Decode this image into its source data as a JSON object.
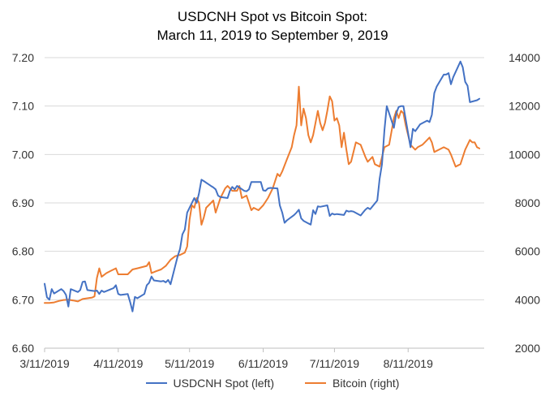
{
  "chart_data": {
    "type": "line",
    "title": [
      "USDCNH Spot vs Bitcoin Spot:",
      "March  11, 2019 to September 9, 2019"
    ],
    "x_axis": {
      "type": "date",
      "range": [
        "2019-03-11",
        "2019-09-12"
      ],
      "tick_labels": [
        "3/11/2019",
        "4/11/2019",
        "5/11/2019",
        "6/11/2019",
        "7/11/2019",
        "8/11/2019"
      ],
      "tick_dates": [
        "2019-03-11",
        "2019-04-11",
        "2019-05-11",
        "2019-06-11",
        "2019-07-11",
        "2019-08-11"
      ]
    },
    "y_left": {
      "range": [
        6.6,
        7.2
      ],
      "ticks": [
        6.6,
        6.7,
        6.8,
        6.9,
        7.0,
        7.1,
        7.2
      ],
      "tick_labels": [
        "6.60",
        "6.70",
        "6.80",
        "6.90",
        "7.00",
        "7.10",
        "7.20"
      ]
    },
    "y_right": {
      "range": [
        2000,
        14000
      ],
      "ticks": [
        2000,
        4000,
        6000,
        8000,
        10000,
        12000,
        14000
      ],
      "tick_labels": [
        "2000",
        "4000",
        "6000",
        "8000",
        "10000",
        "12000",
        "14000"
      ]
    },
    "grid": "horizontal",
    "legend_position": "bottom",
    "series": [
      {
        "name": "USDCNH Spot (left)",
        "axis": "left",
        "color": "#4472C4",
        "points": [
          [
            "2019-03-11",
            6.733
          ],
          [
            "2019-03-12",
            6.705
          ],
          [
            "2019-03-13",
            6.7
          ],
          [
            "2019-03-14",
            6.722
          ],
          [
            "2019-03-15",
            6.713
          ],
          [
            "2019-03-18",
            6.722
          ],
          [
            "2019-03-19",
            6.718
          ],
          [
            "2019-03-20",
            6.71
          ],
          [
            "2019-03-21",
            6.686
          ],
          [
            "2019-03-22",
            6.722
          ],
          [
            "2019-03-25",
            6.716
          ],
          [
            "2019-03-26",
            6.72
          ],
          [
            "2019-03-27",
            6.737
          ],
          [
            "2019-03-28",
            6.738
          ],
          [
            "2019-03-29",
            6.72
          ],
          [
            "2019-04-01",
            6.718
          ],
          [
            "2019-04-02",
            6.719
          ],
          [
            "2019-04-03",
            6.712
          ],
          [
            "2019-04-04",
            6.719
          ],
          [
            "2019-04-05",
            6.716
          ],
          [
            "2019-04-08",
            6.722
          ],
          [
            "2019-04-09",
            6.724
          ],
          [
            "2019-04-10",
            6.73
          ],
          [
            "2019-04-11",
            6.712
          ],
          [
            "2019-04-12",
            6.71
          ],
          [
            "2019-04-15",
            6.712
          ],
          [
            "2019-04-16",
            6.695
          ],
          [
            "2019-04-17",
            6.676
          ],
          [
            "2019-04-18",
            6.706
          ],
          [
            "2019-04-19",
            6.703
          ],
          [
            "2019-04-22",
            6.712
          ],
          [
            "2019-04-23",
            6.73
          ],
          [
            "2019-04-24",
            6.735
          ],
          [
            "2019-04-25",
            6.748
          ],
          [
            "2019-04-26",
            6.74
          ],
          [
            "2019-04-29",
            6.738
          ],
          [
            "2019-04-30",
            6.739
          ],
          [
            "2019-05-01",
            6.736
          ],
          [
            "2019-05-02",
            6.741
          ],
          [
            "2019-05-03",
            6.732
          ],
          [
            "2019-05-06",
            6.79
          ],
          [
            "2019-05-07",
            6.805
          ],
          [
            "2019-05-08",
            6.835
          ],
          [
            "2019-05-09",
            6.845
          ],
          [
            "2019-05-10",
            6.88
          ],
          [
            "2019-05-13",
            6.91
          ],
          [
            "2019-05-14",
            6.9
          ],
          [
            "2019-05-15",
            6.92
          ],
          [
            "2019-05-16",
            6.948
          ],
          [
            "2019-05-17",
            6.945
          ],
          [
            "2019-05-20",
            6.935
          ],
          [
            "2019-05-21",
            6.932
          ],
          [
            "2019-05-22",
            6.928
          ],
          [
            "2019-05-23",
            6.915
          ],
          [
            "2019-05-24",
            6.912
          ],
          [
            "2019-05-27",
            6.91
          ],
          [
            "2019-05-28",
            6.925
          ],
          [
            "2019-05-29",
            6.933
          ],
          [
            "2019-05-30",
            6.928
          ],
          [
            "2019-05-31",
            6.935
          ],
          [
            "2019-06-03",
            6.925
          ],
          [
            "2019-06-04",
            6.924
          ],
          [
            "2019-06-05",
            6.928
          ],
          [
            "2019-06-06",
            6.943
          ],
          [
            "2019-06-07",
            6.943
          ],
          [
            "2019-06-10",
            6.943
          ],
          [
            "2019-06-11",
            6.926
          ],
          [
            "2019-06-12",
            6.925
          ],
          [
            "2019-06-13",
            6.93
          ],
          [
            "2019-06-14",
            6.931
          ],
          [
            "2019-06-17",
            6.93
          ],
          [
            "2019-06-18",
            6.895
          ],
          [
            "2019-06-19",
            6.88
          ],
          [
            "2019-06-20",
            6.859
          ],
          [
            "2019-06-21",
            6.864
          ],
          [
            "2019-06-24",
            6.875
          ],
          [
            "2019-06-25",
            6.88
          ],
          [
            "2019-06-26",
            6.886
          ],
          [
            "2019-06-27",
            6.868
          ],
          [
            "2019-06-28",
            6.863
          ],
          [
            "2019-07-01",
            6.855
          ],
          [
            "2019-07-02",
            6.885
          ],
          [
            "2019-07-03",
            6.877
          ],
          [
            "2019-07-04",
            6.893
          ],
          [
            "2019-07-05",
            6.892
          ],
          [
            "2019-07-08",
            6.895
          ],
          [
            "2019-07-09",
            6.873
          ],
          [
            "2019-07-10",
            6.878
          ],
          [
            "2019-07-11",
            6.876
          ],
          [
            "2019-07-12",
            6.877
          ],
          [
            "2019-07-15",
            6.875
          ],
          [
            "2019-07-16",
            6.884
          ],
          [
            "2019-07-17",
            6.882
          ],
          [
            "2019-07-18",
            6.883
          ],
          [
            "2019-07-19",
            6.882
          ],
          [
            "2019-07-22",
            6.874
          ],
          [
            "2019-07-23",
            6.88
          ],
          [
            "2019-07-24",
            6.886
          ],
          [
            "2019-07-25",
            6.89
          ],
          [
            "2019-07-26",
            6.887
          ],
          [
            "2019-07-29",
            6.905
          ],
          [
            "2019-07-30",
            6.95
          ],
          [
            "2019-07-31",
            6.98
          ],
          [
            "2019-08-01",
            7.05
          ],
          [
            "2019-08-02",
            7.1
          ],
          [
            "2019-08-05",
            7.055
          ],
          [
            "2019-08-06",
            7.085
          ],
          [
            "2019-08-07",
            7.098
          ],
          [
            "2019-08-08",
            7.1
          ],
          [
            "2019-08-09",
            7.1
          ],
          [
            "2019-08-12",
            7.015
          ],
          [
            "2019-08-13",
            7.053
          ],
          [
            "2019-08-14",
            7.048
          ],
          [
            "2019-08-15",
            7.055
          ],
          [
            "2019-08-16",
            7.062
          ],
          [
            "2019-08-19",
            7.07
          ],
          [
            "2019-08-20",
            7.067
          ],
          [
            "2019-08-21",
            7.082
          ],
          [
            "2019-08-22",
            7.127
          ],
          [
            "2019-08-23",
            7.14
          ],
          [
            "2019-08-26",
            7.165
          ],
          [
            "2019-08-27",
            7.165
          ],
          [
            "2019-08-28",
            7.168
          ],
          [
            "2019-08-29",
            7.145
          ],
          [
            "2019-08-30",
            7.16
          ],
          [
            "2019-09-02",
            7.192
          ],
          [
            "2019-09-03",
            7.18
          ],
          [
            "2019-09-04",
            7.15
          ],
          [
            "2019-09-05",
            7.142
          ],
          [
            "2019-09-06",
            7.108
          ],
          [
            "2019-09-09",
            7.112
          ],
          [
            "2019-09-10",
            7.115
          ]
        ]
      },
      {
        "name": "Bitcoin (right)",
        "axis": "right",
        "color": "#ED7D31",
        "points": [
          [
            "2019-03-11",
            3870
          ],
          [
            "2019-03-13",
            3870
          ],
          [
            "2019-03-15",
            3890
          ],
          [
            "2019-03-17",
            3950
          ],
          [
            "2019-03-19",
            3990
          ],
          [
            "2019-03-21",
            4000
          ],
          [
            "2019-03-23",
            3970
          ],
          [
            "2019-03-25",
            3930
          ],
          [
            "2019-03-27",
            4030
          ],
          [
            "2019-03-29",
            4060
          ],
          [
            "2019-03-31",
            4090
          ],
          [
            "2019-04-01",
            4140
          ],
          [
            "2019-04-02",
            4900
          ],
          [
            "2019-04-03",
            5300
          ],
          [
            "2019-04-04",
            4950
          ],
          [
            "2019-04-06",
            5100
          ],
          [
            "2019-04-08",
            5200
          ],
          [
            "2019-04-10",
            5300
          ],
          [
            "2019-04-11",
            5050
          ],
          [
            "2019-04-13",
            5050
          ],
          [
            "2019-04-15",
            5050
          ],
          [
            "2019-04-17",
            5250
          ],
          [
            "2019-04-19",
            5300
          ],
          [
            "2019-04-21",
            5350
          ],
          [
            "2019-04-23",
            5400
          ],
          [
            "2019-04-24",
            5550
          ],
          [
            "2019-04-25",
            5100
          ],
          [
            "2019-04-27",
            5180
          ],
          [
            "2019-04-29",
            5250
          ],
          [
            "2019-05-01",
            5400
          ],
          [
            "2019-05-03",
            5650
          ],
          [
            "2019-05-05",
            5800
          ],
          [
            "2019-05-07",
            5850
          ],
          [
            "2019-05-09",
            5950
          ],
          [
            "2019-05-10",
            6200
          ],
          [
            "2019-05-11",
            7300
          ],
          [
            "2019-05-12",
            7900
          ],
          [
            "2019-05-13",
            7800
          ],
          [
            "2019-05-14",
            8200
          ],
          [
            "2019-05-15",
            8000
          ],
          [
            "2019-05-16",
            7100
          ],
          [
            "2019-05-17",
            7400
          ],
          [
            "2019-05-18",
            7800
          ],
          [
            "2019-05-19",
            7900
          ],
          [
            "2019-05-21",
            8100
          ],
          [
            "2019-05-22",
            7600
          ],
          [
            "2019-05-24",
            8200
          ],
          [
            "2019-05-26",
            8600
          ],
          [
            "2019-05-27",
            8700
          ],
          [
            "2019-05-29",
            8500
          ],
          [
            "2019-05-31",
            8500
          ],
          [
            "2019-06-01",
            8700
          ],
          [
            "2019-06-02",
            8200
          ],
          [
            "2019-06-04",
            8300
          ],
          [
            "2019-06-06",
            7700
          ],
          [
            "2019-06-07",
            7800
          ],
          [
            "2019-06-09",
            7700
          ],
          [
            "2019-06-11",
            7900
          ],
          [
            "2019-06-13",
            8200
          ],
          [
            "2019-06-15",
            8600
          ],
          [
            "2019-06-17",
            9200
          ],
          [
            "2019-06-18",
            9100
          ],
          [
            "2019-06-19",
            9300
          ],
          [
            "2019-06-21",
            9800
          ],
          [
            "2019-06-23",
            10300
          ],
          [
            "2019-06-24",
            10800
          ],
          [
            "2019-06-25",
            11200
          ],
          [
            "2019-06-26",
            12800
          ],
          [
            "2019-06-27",
            11200
          ],
          [
            "2019-06-28",
            11900
          ],
          [
            "2019-06-29",
            11500
          ],
          [
            "2019-06-30",
            10800
          ],
          [
            "2019-07-01",
            10500
          ],
          [
            "2019-07-02",
            10800
          ],
          [
            "2019-07-03",
            11300
          ],
          [
            "2019-07-04",
            11800
          ],
          [
            "2019-07-05",
            11300
          ],
          [
            "2019-07-06",
            11000
          ],
          [
            "2019-07-07",
            11300
          ],
          [
            "2019-07-08",
            11800
          ],
          [
            "2019-07-09",
            12400
          ],
          [
            "2019-07-10",
            12200
          ],
          [
            "2019-07-11",
            11400
          ],
          [
            "2019-07-12",
            11500
          ],
          [
            "2019-07-13",
            11200
          ],
          [
            "2019-07-14",
            10300
          ],
          [
            "2019-07-15",
            10900
          ],
          [
            "2019-07-16",
            10200
          ],
          [
            "2019-07-17",
            9600
          ],
          [
            "2019-07-18",
            9700
          ],
          [
            "2019-07-20",
            10500
          ],
          [
            "2019-07-22",
            10400
          ],
          [
            "2019-07-24",
            9900
          ],
          [
            "2019-07-25",
            9700
          ],
          [
            "2019-07-27",
            9900
          ],
          [
            "2019-07-28",
            9600
          ],
          [
            "2019-07-30",
            9500
          ],
          [
            "2019-08-01",
            10300
          ],
          [
            "2019-08-03",
            10400
          ],
          [
            "2019-08-05",
            11500
          ],
          [
            "2019-08-06",
            11800
          ],
          [
            "2019-08-07",
            11500
          ],
          [
            "2019-08-08",
            11800
          ],
          [
            "2019-08-09",
            11700
          ],
          [
            "2019-08-10",
            11200
          ],
          [
            "2019-08-11",
            10800
          ],
          [
            "2019-08-12",
            10400
          ],
          [
            "2019-08-14",
            10200
          ],
          [
            "2019-08-15",
            10300
          ],
          [
            "2019-08-17",
            10400
          ],
          [
            "2019-08-18",
            10500
          ],
          [
            "2019-08-20",
            10700
          ],
          [
            "2019-08-21",
            10500
          ],
          [
            "2019-08-22",
            10100
          ],
          [
            "2019-08-24",
            10200
          ],
          [
            "2019-08-26",
            10300
          ],
          [
            "2019-08-28",
            10200
          ],
          [
            "2019-08-29",
            10000
          ],
          [
            "2019-08-31",
            9500
          ],
          [
            "2019-09-02",
            9600
          ],
          [
            "2019-09-04",
            10200
          ],
          [
            "2019-09-06",
            10600
          ],
          [
            "2019-09-07",
            10500
          ],
          [
            "2019-09-08",
            10500
          ],
          [
            "2019-09-09",
            10300
          ],
          [
            "2019-09-10",
            10250
          ]
        ]
      }
    ]
  }
}
